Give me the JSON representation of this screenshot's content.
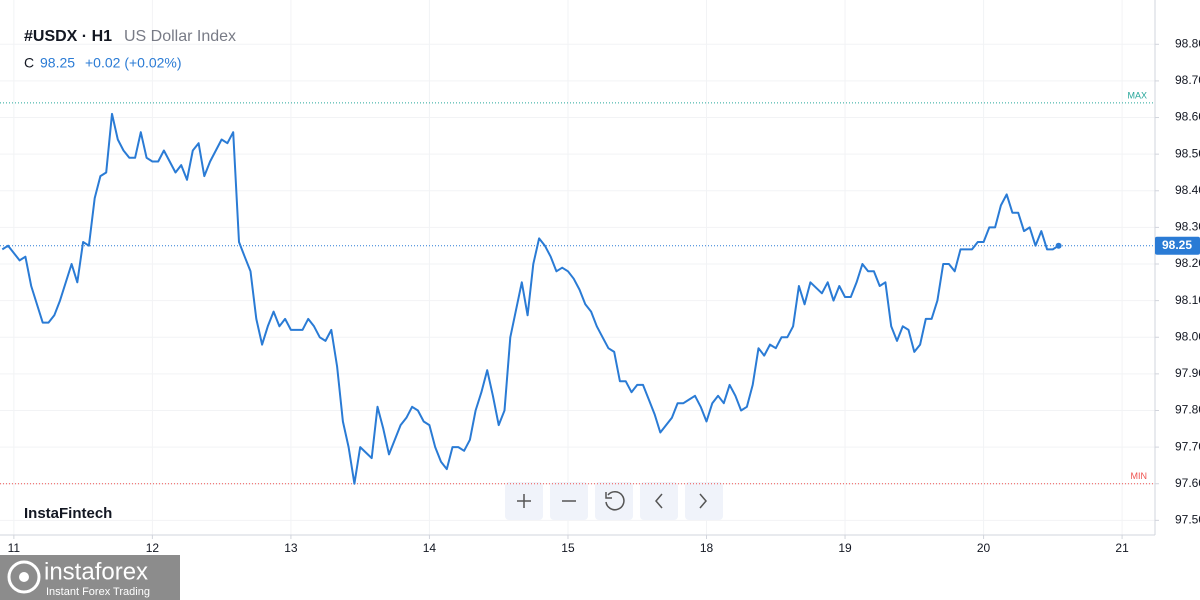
{
  "chart_data": {
    "type": "line",
    "title": "#USDX · H1",
    "subtitle": "US Dollar Index",
    "last": {
      "label": "C",
      "value": 98.25,
      "change": "+0.02 (+0.02%)"
    },
    "levels": [
      {
        "label": "MAX",
        "value": 98.64,
        "color": "#26a69a"
      },
      {
        "label": "MIN",
        "value": 97.6,
        "color": "#ef5350"
      }
    ],
    "x": [
      -2,
      -1,
      1,
      2,
      3,
      5,
      6,
      7,
      8,
      10,
      11,
      12,
      13,
      14,
      15,
      16,
      17,
      18,
      19,
      20,
      21,
      22,
      23,
      24,
      25,
      26,
      27,
      28,
      29,
      30,
      31,
      32,
      33,
      34,
      36,
      37,
      38,
      39,
      40,
      41,
      42,
      43,
      44,
      45,
      46,
      47,
      48,
      49,
      50,
      51,
      52,
      53,
      54,
      55,
      56,
      57,
      58,
      59,
      60,
      62,
      63,
      64,
      65,
      66,
      67,
      68,
      69,
      70,
      71,
      72,
      73,
      74,
      75,
      76,
      77,
      78,
      79,
      80,
      81,
      82,
      83,
      84,
      85,
      86,
      88,
      89,
      90,
      91,
      92,
      93,
      94,
      95,
      96,
      97,
      98,
      99,
      100,
      101,
      102,
      103,
      104,
      105,
      106,
      107,
      108,
      109,
      110,
      111,
      112,
      114,
      115,
      116,
      117,
      118,
      119,
      120,
      121,
      122,
      123,
      124,
      125,
      126,
      127,
      128,
      129,
      130,
      131,
      132,
      133,
      134,
      135,
      136,
      137,
      138,
      140,
      141,
      142,
      143,
      144,
      145,
      146,
      147,
      148,
      149,
      150,
      151,
      152,
      153,
      154,
      155,
      156,
      157,
      158,
      159,
      160,
      161,
      162,
      163,
      164,
      166,
      167,
      168,
      169,
      170,
      171,
      172,
      173,
      174,
      175,
      176,
      177,
      178,
      179,
      180,
      181
    ],
    "series": [
      {
        "name": "#USDX",
        "color": "#2a7bd5",
        "values": [
          98.24,
          98.25,
          98.21,
          98.22,
          98.14,
          98.04,
          98.04,
          98.06,
          98.1,
          98.2,
          98.15,
          98.26,
          98.25,
          98.38,
          98.44,
          98.45,
          98.61,
          98.54,
          98.51,
          98.49,
          98.49,
          98.56,
          98.49,
          98.48,
          98.48,
          98.51,
          98.48,
          98.45,
          98.47,
          98.43,
          98.51,
          98.53,
          98.44,
          98.48,
          98.54,
          98.53,
          98.56,
          98.26,
          98.22,
          98.18,
          98.05,
          97.98,
          98.03,
          98.07,
          98.03,
          98.05,
          98.02,
          98.02,
          98.02,
          98.05,
          98.03,
          98.0,
          97.99,
          98.02,
          97.92,
          97.77,
          97.7,
          97.6,
          97.7,
          97.67,
          97.81,
          97.75,
          97.68,
          97.72,
          97.76,
          97.78,
          97.81,
          97.8,
          97.77,
          97.76,
          97.7,
          97.66,
          97.64,
          97.7,
          97.7,
          97.69,
          97.72,
          97.8,
          97.85,
          97.91,
          97.84,
          97.76,
          97.8,
          98.0,
          98.15,
          98.06,
          98.2,
          98.27,
          98.25,
          98.22,
          98.18,
          98.19,
          98.18,
          98.16,
          98.13,
          98.09,
          98.07,
          98.03,
          98.0,
          97.97,
          97.96,
          97.88,
          97.88,
          97.85,
          97.87,
          97.87,
          97.83,
          97.79,
          97.74,
          97.78,
          97.82,
          97.82,
          97.83,
          97.84,
          97.81,
          97.77,
          97.82,
          97.84,
          97.82,
          97.87,
          97.84,
          97.8,
          97.81,
          97.87,
          97.97,
          97.95,
          97.98,
          97.97,
          98.0,
          98.0,
          98.03,
          98.14,
          98.09,
          98.15,
          98.12,
          98.15,
          98.1,
          98.14,
          98.11,
          98.11,
          98.15,
          98.2,
          98.18,
          98.18,
          98.14,
          98.15,
          98.03,
          97.99,
          98.03,
          98.02,
          97.96,
          97.98,
          98.05,
          98.05,
          98.1,
          98.2,
          98.2,
          98.18,
          98.24,
          98.24,
          98.26,
          98.26,
          98.3,
          98.3,
          98.36,
          98.39,
          98.34,
          98.34,
          98.29,
          98.3,
          98.25,
          98.29,
          98.24,
          98.24,
          98.25
        ]
      }
    ],
    "xlim": [
      -2.4,
      197.7
    ],
    "xticks": [
      {
        "value": 0,
        "label": "11"
      },
      {
        "value": 24,
        "label": "12"
      },
      {
        "value": 48,
        "label": "13"
      },
      {
        "value": 72,
        "label": "14"
      },
      {
        "value": 96,
        "label": "15"
      },
      {
        "value": 120,
        "label": "18"
      },
      {
        "value": 144,
        "label": "19"
      },
      {
        "value": 168,
        "label": "20"
      },
      {
        "value": 192,
        "label": "21"
      }
    ],
    "ylim": [
      97.46,
      98.88
    ],
    "yticks": [
      {
        "value": 97.5,
        "label": "97.50"
      },
      {
        "value": 97.6,
        "label": "97.60"
      },
      {
        "value": 97.7,
        "label": "97.70"
      },
      {
        "value": 97.8,
        "label": "97.80"
      },
      {
        "value": 97.9,
        "label": "97.90"
      },
      {
        "value": 98.0,
        "label": "98.00"
      },
      {
        "value": 98.1,
        "label": "98.10"
      },
      {
        "value": 98.2,
        "label": "98.20"
      },
      {
        "value": 98.3,
        "label": "98.30"
      },
      {
        "value": 98.4,
        "label": "98.40"
      },
      {
        "value": 98.5,
        "label": "98.50"
      },
      {
        "value": 98.6,
        "label": "98.60"
      },
      {
        "value": 98.7,
        "label": "98.70"
      },
      {
        "value": 98.8,
        "label": "98.80"
      }
    ],
    "grid": true
  },
  "watermark": "InstaFintech",
  "brand": {
    "name": "instaforex",
    "tagline": "Instant Forex Trading"
  }
}
